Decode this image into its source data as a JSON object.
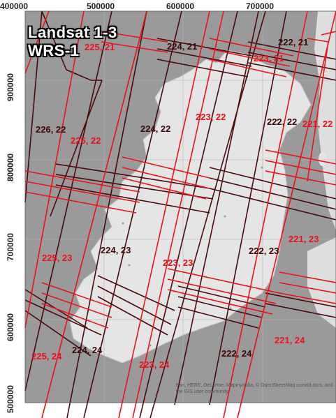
{
  "map": {
    "title_line1": "Landsat 1-3",
    "title_line2": "WRS-1",
    "x_axis_labels": [
      "400000",
      "500000",
      "600000",
      "700000"
    ],
    "y_axis_labels": [
      "900000",
      "800000",
      "700000",
      "600000",
      "500000"
    ],
    "path_rows_red": [
      "225, 21",
      "223, 21",
      "223, 22",
      "221, 22",
      "225, 22",
      "221, 23",
      "225, 23",
      "223, 23",
      "221, 24",
      "225, 24",
      "223, 24"
    ],
    "path_rows_dark": [
      "222, 21",
      "224, 21",
      "222, 22",
      "226, 22",
      "224, 22",
      "224, 23",
      "222, 23",
      "224, 24",
      "222, 24"
    ],
    "attribution": "Esri, HERE, DeLorme, MapmyIndia, © OpenStreetMap contributors, and the GIS user community",
    "colors": {
      "water": "#9a9a9a",
      "land": "#e5e5e5",
      "footprint_red": "#e8141b",
      "footprint_dark": "#4a0a0e",
      "grid": "#b4b4b4"
    }
  }
}
